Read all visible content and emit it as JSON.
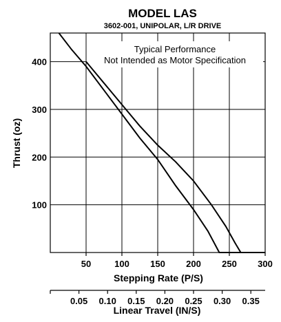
{
  "chart_data": {
    "type": "line",
    "title": "MODEL LAS",
    "subtitle": "3602-001, UNIPOLAR, L/R DRIVE",
    "annotation": [
      "Typical Performance",
      "Not Intended as Motor Specification"
    ],
    "xlabel": "Stepping Rate (P/S)",
    "ylabel": "Thrust (oz)",
    "x2label": "Linear Travel (IN/S)",
    "xlim": [
      0,
      300
    ],
    "ylim": [
      0,
      460
    ],
    "x_ticks": [
      {
        "value": 50,
        "label": "50"
      },
      {
        "value": 100,
        "label": "100"
      },
      {
        "value": 150,
        "label": "150"
      },
      {
        "value": 200,
        "label": "200"
      },
      {
        "value": 250,
        "label": "250"
      },
      {
        "value": 300,
        "label": "300"
      }
    ],
    "y_ticks": [
      {
        "value": 100,
        "label": "100"
      },
      {
        "value": 200,
        "label": "200"
      },
      {
        "value": 300,
        "label": "300"
      },
      {
        "value": 400,
        "label": "400"
      }
    ],
    "x2_scale": 0.00125,
    "x2_ticks": [
      {
        "value": 0.05,
        "label": "0.05"
      },
      {
        "value": 0.1,
        "label": "0.10"
      },
      {
        "value": 0.15,
        "label": "0.15"
      },
      {
        "value": 0.2,
        "label": "0.20"
      },
      {
        "value": 0.25,
        "label": "0.25"
      },
      {
        "value": 0.3,
        "label": "0.30"
      },
      {
        "value": 0.35,
        "label": "0.35"
      }
    ],
    "grid": true,
    "series": [
      {
        "x": [
          12,
          30,
          50,
          75,
          100,
          125,
          150,
          175,
          200,
          220,
          236,
          300
        ],
        "y": [
          460,
          425,
          390,
          340,
          290,
          240,
          195,
          140,
          90,
          45,
          0,
          0
        ]
      },
      {
        "x": [
          50,
          75,
          100,
          125,
          150,
          175,
          200,
          225,
          245,
          258,
          266
        ],
        "y": [
          400,
          355,
          310,
          265,
          225,
          190,
          150,
          100,
          55,
          20,
          0
        ]
      }
    ]
  }
}
